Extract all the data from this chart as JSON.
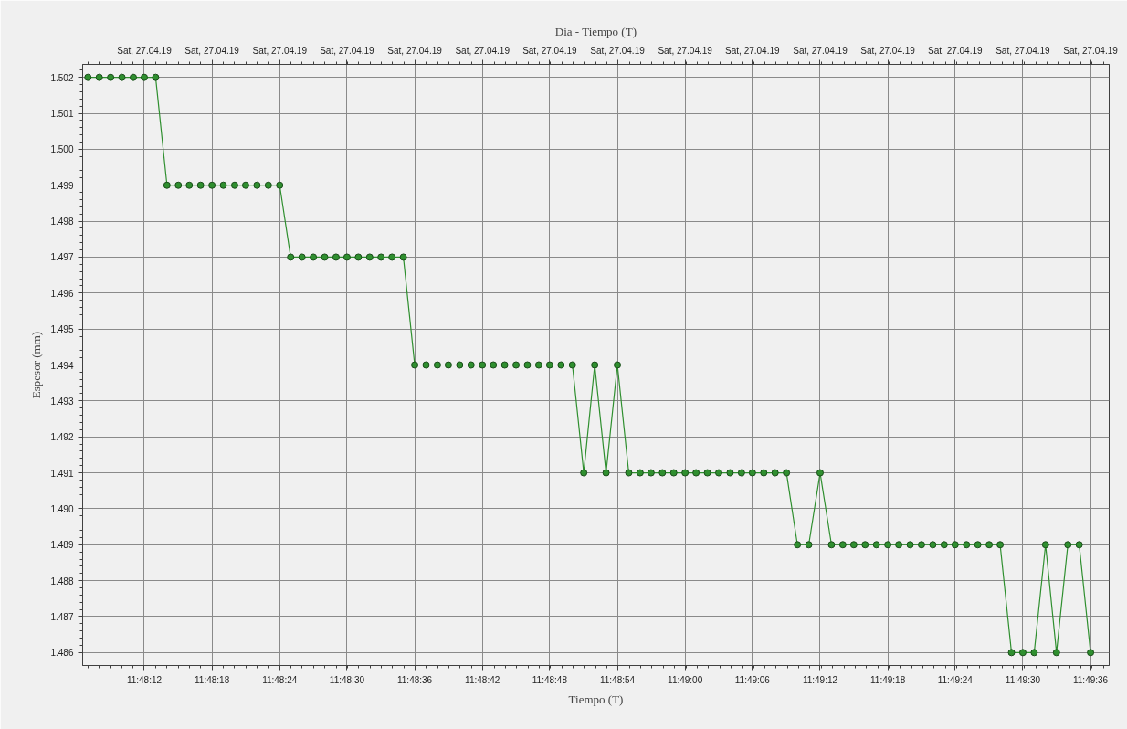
{
  "chart_data": {
    "type": "line",
    "xlabel": "Tiempo (T)",
    "ylabel": "Espesor (mm)",
    "x2label": "Dia - Tiempo (T)",
    "x": [
      11.80194,
      11.80222,
      11.8025,
      11.80278,
      11.80306,
      11.80333,
      11.80361,
      11.80389,
      11.80417,
      11.80444,
      11.80472,
      11.805,
      11.80528,
      11.80556,
      11.80583,
      11.80611,
      11.80639,
      11.80667,
      11.80694,
      11.80722,
      11.8075,
      11.80778,
      11.80806,
      11.80833,
      11.80861,
      11.80889,
      11.80917,
      11.80944,
      11.80972,
      11.81,
      11.81028,
      11.81056,
      11.81083,
      11.81111,
      11.81139,
      11.81167,
      11.81194,
      11.81222,
      11.8125,
      11.81278,
      11.81306,
      11.81333,
      11.81361,
      11.81389,
      11.81417,
      11.81444,
      11.81472,
      11.815,
      11.81528,
      11.81556,
      11.81583,
      11.81611,
      11.81639,
      11.81667,
      11.81694,
      11.81722,
      11.8175,
      11.81778,
      11.81806,
      11.81833,
      11.81861,
      11.81889,
      11.81917,
      11.81944,
      11.81972,
      11.82,
      11.82028,
      11.82056,
      11.82083,
      11.82111,
      11.82139,
      11.82167,
      11.82194,
      11.82222,
      11.8225,
      11.82278,
      11.82306,
      11.82333,
      11.82361,
      11.82389,
      11.82417,
      11.82444,
      11.82472,
      11.825,
      11.82528,
      11.82556,
      11.82583,
      11.82611,
      11.82639,
      11.82667
    ],
    "series": [
      {
        "color": "#2f8f2f",
        "values": [
          1.502,
          1.502,
          1.502,
          1.502,
          1.502,
          1.502,
          1.502,
          1.499,
          1.499,
          1.499,
          1.499,
          1.499,
          1.499,
          1.499,
          1.499,
          1.499,
          1.499,
          1.499,
          1.497,
          1.497,
          1.497,
          1.497,
          1.497,
          1.497,
          1.497,
          1.497,
          1.497,
          1.497,
          1.497,
          1.494,
          1.494,
          1.494,
          1.494,
          1.494,
          1.494,
          1.494,
          1.494,
          1.494,
          1.494,
          1.494,
          1.494,
          1.494,
          1.494,
          1.494,
          1.491,
          1.494,
          1.491,
          1.494,
          1.491,
          1.491,
          1.491,
          1.491,
          1.491,
          1.491,
          1.491,
          1.491,
          1.491,
          1.491,
          1.491,
          1.491,
          1.491,
          1.491,
          1.491,
          1.489,
          1.489,
          1.491,
          1.489,
          1.489,
          1.489,
          1.489,
          1.489,
          1.489,
          1.489,
          1.489,
          1.489,
          1.489,
          1.489,
          1.489,
          1.489,
          1.489,
          1.489,
          1.489,
          1.486,
          1.486,
          1.486,
          1.489,
          1.486,
          1.489,
          1.489,
          1.486
        ]
      }
    ],
    "xlim": [
      11.80181,
      11.82713
    ],
    "xticks": [
      {
        "value": 11.80333,
        "label": "11:48:12"
      },
      {
        "value": 11.805,
        "label": "11:48:18"
      },
      {
        "value": 11.80667,
        "label": "11:48:24"
      },
      {
        "value": 11.80833,
        "label": "11:48:30"
      },
      {
        "value": 11.81,
        "label": "11:48:36"
      },
      {
        "value": 11.81167,
        "label": "11:48:42"
      },
      {
        "value": 11.81333,
        "label": "11:48:48"
      },
      {
        "value": 11.815,
        "label": "11:48:54"
      },
      {
        "value": 11.81667,
        "label": "11:49:00"
      },
      {
        "value": 11.81833,
        "label": "11:49:06"
      },
      {
        "value": 11.82,
        "label": "11:49:12"
      },
      {
        "value": 11.82167,
        "label": "11:49:18"
      },
      {
        "value": 11.82333,
        "label": "11:49:24"
      },
      {
        "value": 11.825,
        "label": "11:49:30"
      },
      {
        "value": 11.82667,
        "label": "11:49:36"
      }
    ],
    "annotations": [
      "Sat, 27.04.19",
      "Sat, 27.04.19",
      "Sat, 27.04.19",
      "Sat, 27.04.19",
      "Sat, 27.04.19",
      "Sat, 27.04.19",
      "Sat, 27.04.19",
      "Sat, 27.04.19",
      "Sat, 27.04.19",
      "Sat, 27.04.19",
      "Sat, 27.04.19",
      "Sat, 27.04.19",
      "Sat, 27.04.19",
      "Sat, 27.04.19",
      "Sat, 27.04.19"
    ],
    "ylim": [
      1.48564,
      1.50236
    ],
    "yticks": [
      1.486,
      1.487,
      1.488,
      1.489,
      {
        "value": 1.49,
        "label": "1.490"
      },
      1.491,
      1.492,
      1.493,
      1.494,
      1.495,
      1.496,
      1.497,
      1.498,
      1.499,
      {
        "value": 1.5,
        "label": "1.500"
      },
      1.501,
      1.502
    ],
    "grid": true,
    "marker": "circle",
    "line_style": "solid"
  }
}
